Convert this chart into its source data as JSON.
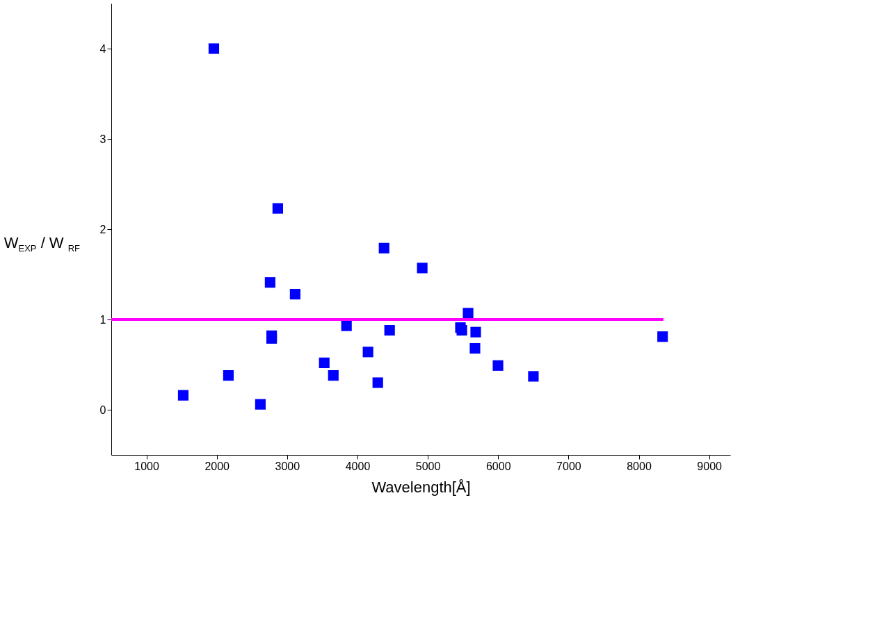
{
  "chart_data": {
    "type": "scatter",
    "xlabel": "Wavelength[Å]",
    "ylabel": "W$_{EXP}$ /  W$_{RF}$",
    "xlim": [
      500,
      9300
    ],
    "ylim": [
      -0.5,
      4.5
    ],
    "xticks": [
      1000,
      2000,
      3000,
      4000,
      5000,
      6000,
      7000,
      8000,
      9000
    ],
    "yticks": [
      0,
      1,
      2,
      3,
      4
    ],
    "grid": false,
    "series": [
      {
        "marker": "square",
        "color": "#0000ff",
        "x": [
          1523,
          1958,
          2165,
          2620,
          2780,
          2780,
          2758,
          2867,
          3114,
          3528,
          3657,
          3844,
          4150,
          4289,
          4378,
          4457,
          4921,
          5464,
          5484,
          5573,
          5681,
          5671,
          5998,
          6501,
          8338
        ],
        "values": [
          0.16,
          4.0,
          0.38,
          0.06,
          0.79,
          0.82,
          1.41,
          2.23,
          1.28,
          0.52,
          0.38,
          0.93,
          0.64,
          0.3,
          1.79,
          0.88,
          1.57,
          0.91,
          0.88,
          1.07,
          0.86,
          0.68,
          0.49,
          0.37,
          0.81
        ]
      },
      {
        "type": "line",
        "color": "#ff00ff",
        "x": [
          500,
          8350
        ],
        "values": [
          1,
          1
        ]
      }
    ]
  }
}
